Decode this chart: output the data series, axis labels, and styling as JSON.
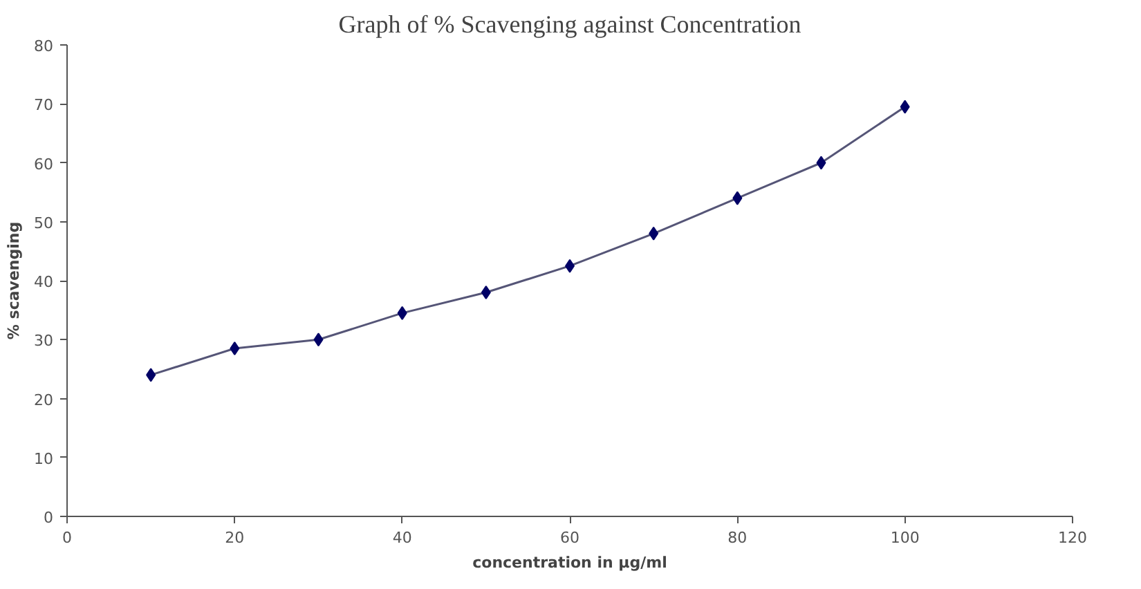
{
  "chart_data": {
    "type": "line",
    "title": "Graph of % Scavenging against Concentration",
    "xlabel": "concentration in µg/ml",
    "ylabel": "% scavenging",
    "x": [
      10,
      20,
      30,
      40,
      50,
      60,
      70,
      80,
      90,
      100
    ],
    "series": [
      {
        "color": "#000066",
        "values": [
          24,
          28.5,
          30,
          34.5,
          38,
          42.5,
          48,
          54,
          60,
          69.5
        ]
      }
    ],
    "xlim": [
      0,
      120
    ],
    "xticks": [
      0,
      20,
      40,
      60,
      80,
      100,
      120
    ],
    "ylim": [
      0,
      80
    ],
    "yticks": [
      0,
      10,
      20,
      30,
      40,
      50,
      60,
      70,
      80
    ],
    "grid": false,
    "marker": "diamond",
    "line_style": "solid"
  }
}
